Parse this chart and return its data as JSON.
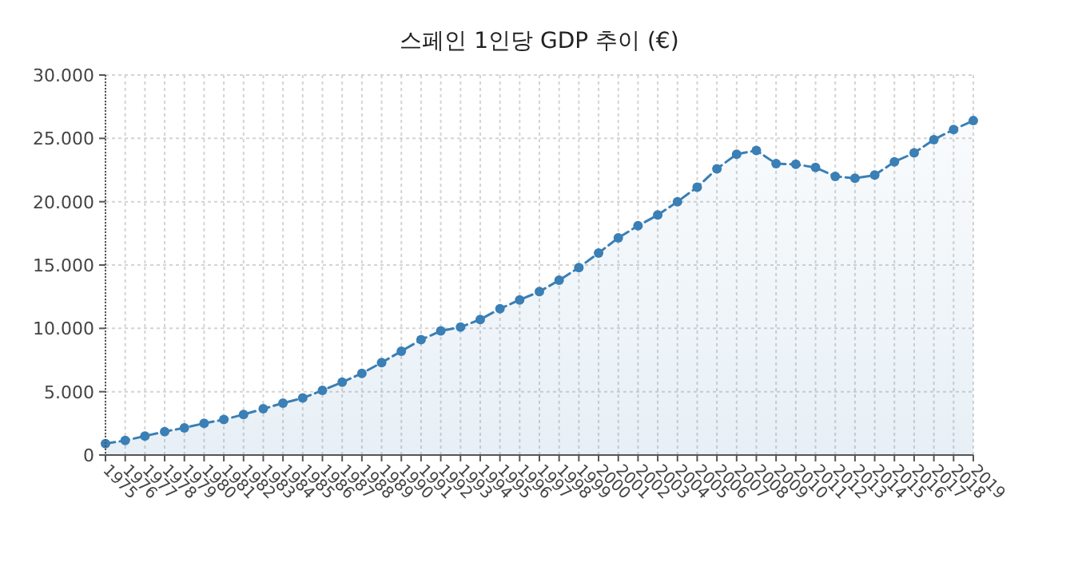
{
  "chart_data": {
    "type": "area",
    "title": "스페인 1인당 GDP 추이 (€)",
    "categories": [
      "1975",
      "1976",
      "1977",
      "1978",
      "1979",
      "1980",
      "1981",
      "1982",
      "1983",
      "1984",
      "1985",
      "1986",
      "1987",
      "1988",
      "1989",
      "1990",
      "1991",
      "1992",
      "1993",
      "1994",
      "1995",
      "1996",
      "1997",
      "1998",
      "1999",
      "2000",
      "2001",
      "2002",
      "2003",
      "2004",
      "2005",
      "2006",
      "2007",
      "2008",
      "2009",
      "2010",
      "2011",
      "2012",
      "2013",
      "2014",
      "2015",
      "2016",
      "2017",
      "2018",
      "2019"
    ],
    "series": [
      {
        "color": "#3a7fb5",
        "values": [
          900,
          1150,
          1500,
          1850,
          2150,
          2500,
          2800,
          3200,
          3650,
          4100,
          4500,
          5100,
          5750,
          6450,
          7300,
          8200,
          9100,
          9800,
          10100,
          10700,
          11550,
          12250,
          12900,
          13800,
          14800,
          15950,
          17150,
          18100,
          18950,
          20000,
          21150,
          22600,
          23750,
          24050,
          23000,
          22950,
          22700,
          22000,
          21850,
          22100,
          23150,
          23850,
          24900,
          25700,
          26400
        ]
      }
    ],
    "ylim": [
      0,
      30000
    ],
    "yticks": [
      0,
      {
        "value": 5000,
        "label": "5.000"
      },
      {
        "value": 10000,
        "label": "10.000"
      },
      {
        "value": 15000,
        "label": "15.000"
      },
      {
        "value": 20000,
        "label": "20.000"
      },
      {
        "value": 25000,
        "label": "25.000"
      },
      {
        "value": 30000,
        "label": "30.000"
      }
    ],
    "grid": true,
    "marker": "circle",
    "line_style": "dashed"
  }
}
